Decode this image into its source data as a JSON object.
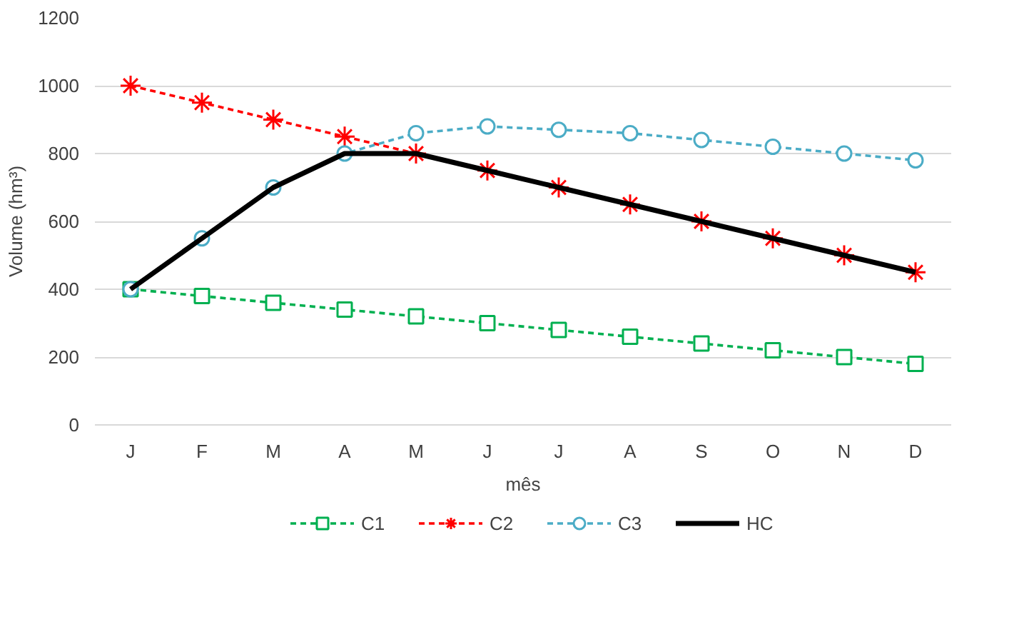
{
  "chart_data": {
    "type": "line",
    "xlabel": "mês",
    "ylabel": "Volume (hm³)",
    "categories": [
      "J",
      "F",
      "M",
      "A",
      "M",
      "J",
      "J",
      "A",
      "S",
      "O",
      "N",
      "D"
    ],
    "ylim": [
      0,
      1200
    ],
    "yticks": [
      0,
      200,
      400,
      600,
      800,
      1000,
      1200
    ],
    "grid": "y",
    "legend": "bottom",
    "series": [
      {
        "name": "C1",
        "color": "#00b050",
        "marker": "square",
        "line_style": "dashed",
        "values": [
          400,
          380,
          360,
          340,
          320,
          300,
          280,
          260,
          240,
          220,
          200,
          180
        ]
      },
      {
        "name": "C2",
        "color": "#ff0000",
        "marker": "cross",
        "line_style": "dashed",
        "values": [
          1000,
          950,
          900,
          850,
          800,
          750,
          700,
          650,
          600,
          550,
          500,
          450
        ]
      },
      {
        "name": "C3",
        "color": "#4bacc6",
        "marker": "circle",
        "line_style": "dashed",
        "values": [
          400,
          550,
          700,
          800,
          860,
          880,
          870,
          860,
          840,
          820,
          800,
          780
        ]
      },
      {
        "name": "HC",
        "color": "#000000",
        "marker": "none",
        "line_style": "solid",
        "values": [
          400,
          550,
          700,
          800,
          800,
          750,
          700,
          650,
          600,
          550,
          500,
          450
        ]
      }
    ]
  }
}
